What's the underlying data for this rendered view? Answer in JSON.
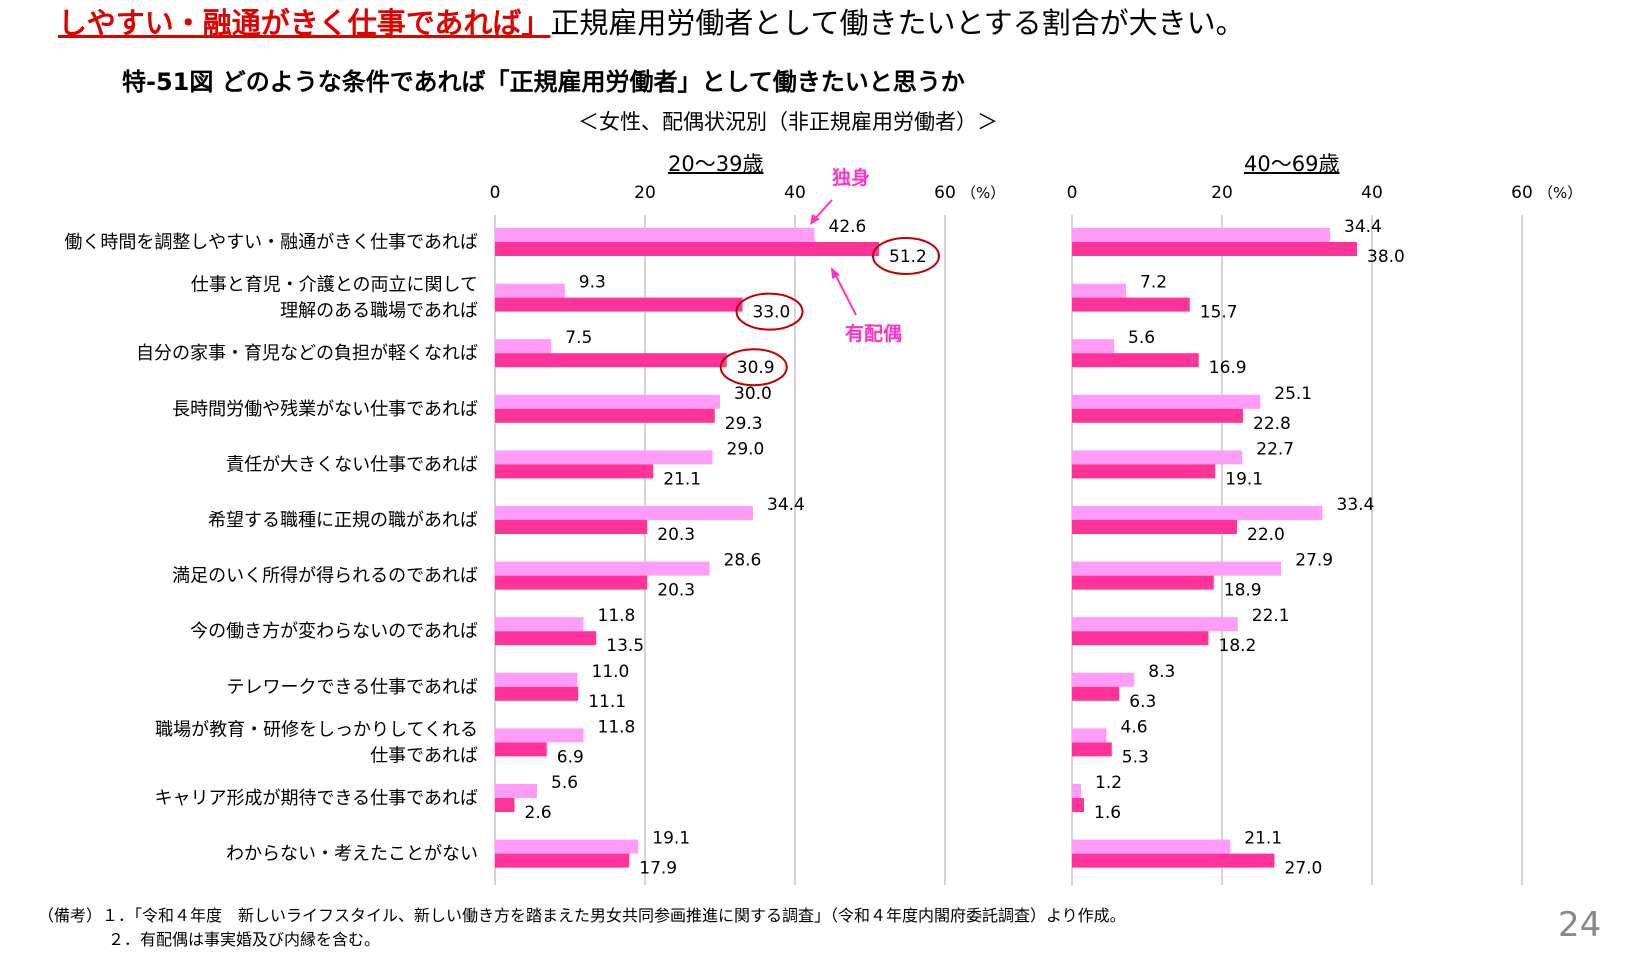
{
  "headline": {
    "highlight": "しやすい・融通がきく仕事であれば」",
    "rest": "正規雇用労働者として働きたいとする割合が大きい。"
  },
  "title": "特-51図 どのような条件であれば「正規雇用労働者」として働きたいと思うか",
  "subtitle": "＜女性、配偶状況別（非正規雇用労働者）＞",
  "colors": {
    "single": "#ff9cf7",
    "married": "#ff3399",
    "highlight": "#e00000",
    "annotation": "#ff33cc"
  },
  "annotations": {
    "single": "独身",
    "married": "有配偶"
  },
  "chart_data": [
    {
      "type": "bar",
      "orientation": "horizontal",
      "title": "20～39歳",
      "xlim": [
        0,
        60
      ],
      "ticks": [
        "0",
        "20",
        "40",
        "60"
      ],
      "unit": "（%）",
      "grid": true,
      "categories": [
        "働く時間を調整しやすい・融通がきく仕事であれば",
        "仕事と育児・介護との両立に関して\n理解のある職場であれば",
        "自分の家事・育児などの負担が軽くなれば",
        "長時間労働や残業がない仕事であれば",
        "責任が大きくない仕事であれば",
        "希望する職種に正規の職があれば",
        "満足のいく所得が得られるのであれば",
        "今の働き方が変わらないのであれば",
        "テレワークできる仕事であれば",
        "職場が教育・研修をしっかりしてくれる\n仕事であれば",
        "キャリア形成が期待できる仕事であれば",
        "わからない・考えたことがない"
      ],
      "series": [
        {
          "name": "独身",
          "values": [
            42.6,
            9.3,
            7.5,
            30.0,
            29.0,
            34.4,
            28.6,
            11.8,
            11.0,
            11.8,
            5.6,
            19.1
          ]
        },
        {
          "name": "有配偶",
          "values": [
            51.2,
            33.0,
            30.9,
            29.3,
            21.1,
            20.3,
            20.3,
            13.5,
            11.1,
            6.9,
            2.6,
            17.9
          ]
        }
      ],
      "circled": [
        "51.2",
        "33.0",
        "30.9"
      ]
    },
    {
      "type": "bar",
      "orientation": "horizontal",
      "title": "40～69歳",
      "xlim": [
        0,
        60
      ],
      "ticks": [
        "0",
        "20",
        "40",
        "60"
      ],
      "unit": "（%）",
      "grid": true,
      "series": [
        {
          "name": "独身",
          "values": [
            34.4,
            7.2,
            5.6,
            25.1,
            22.7,
            33.4,
            27.9,
            22.1,
            8.3,
            4.6,
            1.2,
            21.1
          ]
        },
        {
          "name": "有配偶",
          "values": [
            38.0,
            15.7,
            16.9,
            22.8,
            19.1,
            22.0,
            18.9,
            18.2,
            6.3,
            5.3,
            1.6,
            27.0
          ]
        }
      ]
    }
  ],
  "notes": [
    "（備考）１．「令和４年度　新しいライフスタイル、新しい働き方を踏まえた男女共同参画推進に関する調査」（令和４年度内閣府委託調査）より作成。",
    "２．有配偶は事実婚及び内縁を含む。"
  ],
  "page_number": "24"
}
